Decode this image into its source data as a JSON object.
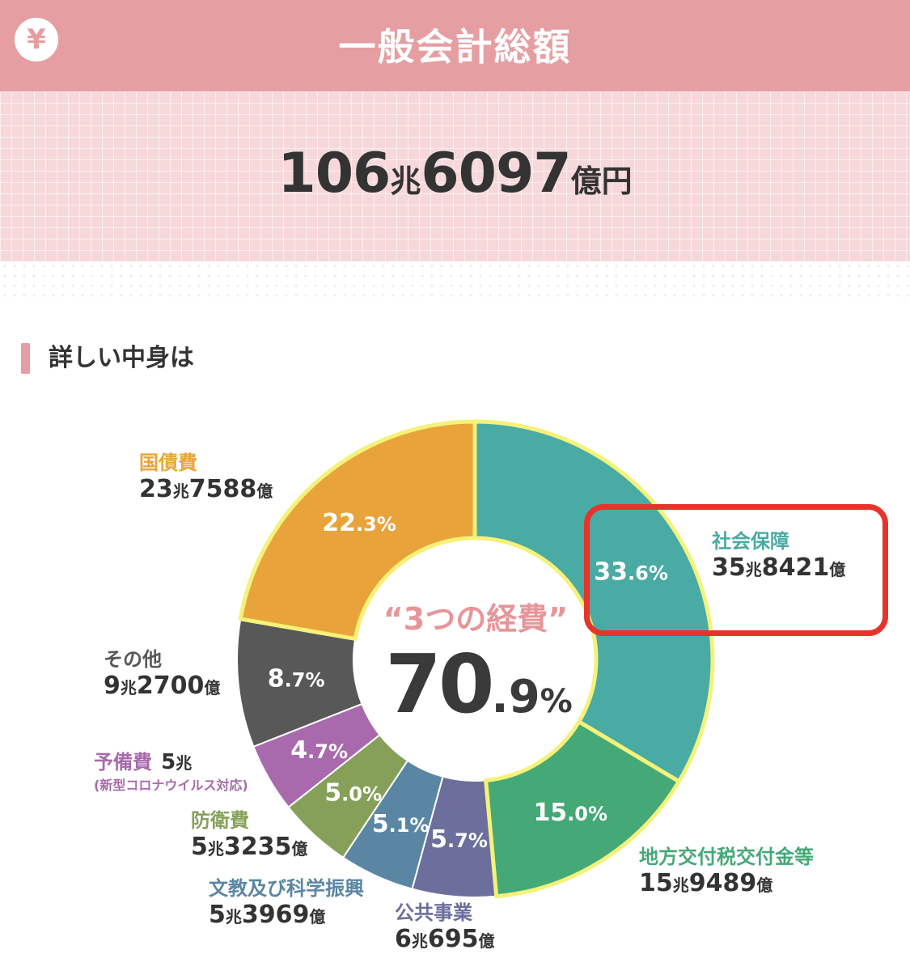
{
  "header": {
    "icon": "yen-icon",
    "icon_glyph": "¥",
    "title": "一般会計総額"
  },
  "total": {
    "num1": "106",
    "unit1": "兆",
    "num2": "6097",
    "unit2": "億円"
  },
  "section": {
    "title": "詳しい中身は"
  },
  "center": {
    "caption": "“3つの経費”",
    "value_int": "70",
    "value_dec": ".9",
    "value_unit": "%"
  },
  "colors": {
    "header": "#e59fa2",
    "highlight_border": "#e6342b",
    "segment_outline": "#f5f27a"
  },
  "chart_data": {
    "type": "pie",
    "title": "",
    "start_angle_deg": 0,
    "direction": "clockwise",
    "highlighted": [
      "社会保障",
      "地方交付税交付金等",
      "国債費"
    ],
    "series": [
      {
        "name": "社会保障",
        "percent": 33.6,
        "percent_int": "33",
        "percent_dec": ".6%",
        "amount_cho": "35",
        "amount_oku": "8421",
        "color": "#4aaaa4"
      },
      {
        "name": "地方交付税交付金等",
        "percent": 15.0,
        "percent_int": "15",
        "percent_dec": ".0%",
        "amount_cho": "15",
        "amount_oku": "9489",
        "color": "#45a877"
      },
      {
        "name": "公共事業",
        "percent": 5.7,
        "percent_int": "5",
        "percent_dec": ".7%",
        "amount_cho": "6",
        "amount_oku": "695",
        "color": "#6c6f9c"
      },
      {
        "name": "文教及び科学振興",
        "percent": 5.1,
        "percent_int": "5",
        "percent_dec": ".1%",
        "amount_cho": "5",
        "amount_oku": "3969",
        "color": "#5a86a4"
      },
      {
        "name": "防衛費",
        "percent": 5.0,
        "percent_int": "5",
        "percent_dec": ".0%",
        "amount_cho": "5",
        "amount_oku": "3235",
        "color": "#86a05a"
      },
      {
        "name": "予備費",
        "percent": 4.7,
        "percent_int": "4",
        "percent_dec": ".7%",
        "amount_cho": "5",
        "amount_oku": "",
        "note": "(新型コロナウイルス対応)",
        "color": "#a86aac"
      },
      {
        "name": "その他",
        "percent": 8.7,
        "percent_int": "8",
        "percent_dec": ".7%",
        "amount_cho": "9",
        "amount_oku": "2700",
        "color": "#585858"
      },
      {
        "name": "国債費",
        "percent": 22.3,
        "percent_int": "22",
        "percent_dec": ".3%",
        "amount_cho": "23",
        "amount_oku": "7588",
        "color": "#e8a43a"
      }
    ]
  }
}
